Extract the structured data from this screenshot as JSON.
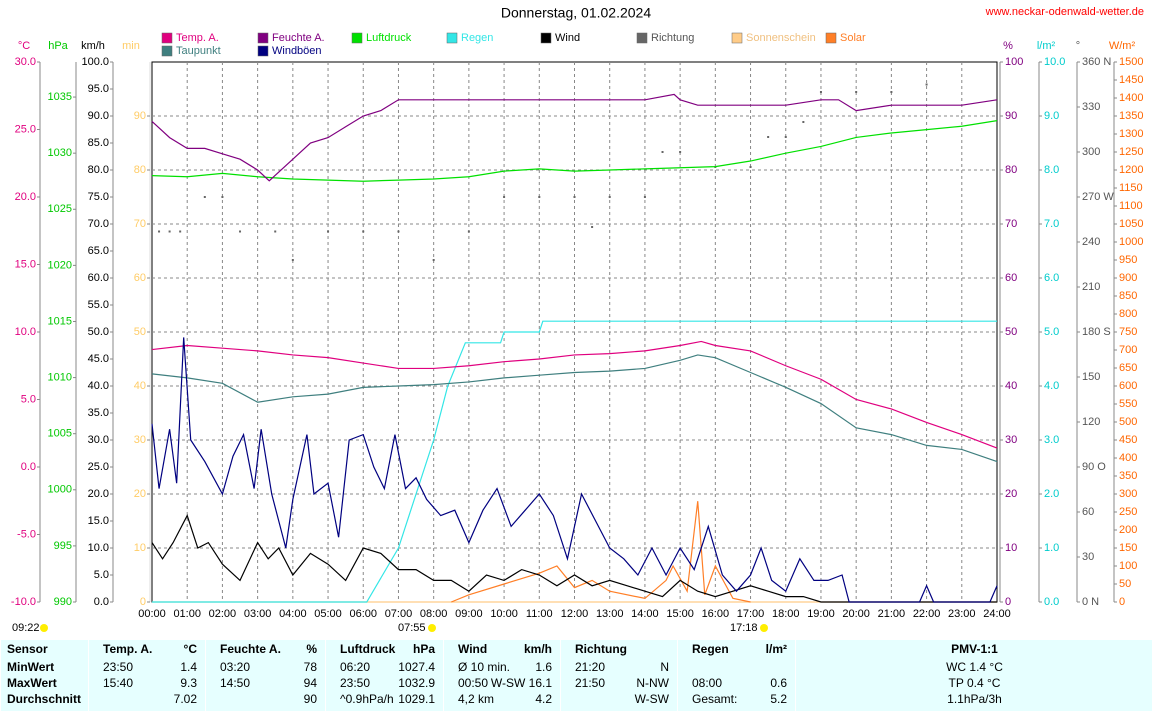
{
  "chart_data": {
    "type": "line",
    "title": "Donnerstag, 01.02.2024",
    "source": "www.neckar-odenwald-wetter.de",
    "annotations": {
      "sunshine_duration": "09:22",
      "sunrise": "07:55",
      "sunset": "17:18"
    },
    "xlim": [
      0,
      24
    ],
    "xticks": [
      {
        "value": 0,
        "label": "00:00"
      },
      {
        "value": 1,
        "label": "01:00"
      },
      {
        "value": 2,
        "label": "02:00"
      },
      {
        "value": 3,
        "label": "03:00"
      },
      {
        "value": 4,
        "label": "04:00"
      },
      {
        "value": 5,
        "label": "05:00"
      },
      {
        "value": 6,
        "label": "06:00"
      },
      {
        "value": 7,
        "label": "07:00"
      },
      {
        "value": 8,
        "label": "08:00"
      },
      {
        "value": 9,
        "label": "09:00"
      },
      {
        "value": 10,
        "label": "10:00"
      },
      {
        "value": 11,
        "label": "11:00"
      },
      {
        "value": 12,
        "label": "12:00"
      },
      {
        "value": 13,
        "label": "13:00"
      },
      {
        "value": 14,
        "label": "14:00"
      },
      {
        "value": 15,
        "label": "15:00"
      },
      {
        "value": 16,
        "label": "16:00"
      },
      {
        "value": 17,
        "label": "17:00"
      },
      {
        "value": 18,
        "label": "18:00"
      },
      {
        "value": 19,
        "label": "19:00"
      },
      {
        "value": 20,
        "label": "20:00"
      },
      {
        "value": 21,
        "label": "21:00"
      },
      {
        "value": 22,
        "label": "22:00"
      },
      {
        "value": 23,
        "label": "23:00"
      },
      {
        "value": 24,
        "label": "24:00"
      }
    ],
    "axes": [
      {
        "unit": "°C",
        "color": "#e0007f",
        "ylim": [
          -10,
          30
        ],
        "yticks": [
          {
            "value": -10,
            "label": "-10.0"
          },
          {
            "value": -5,
            "label": "-5.0"
          },
          {
            "value": 0,
            "label": "0.0"
          },
          {
            "value": 5,
            "label": "5.0"
          },
          {
            "value": 10,
            "label": "10.0"
          },
          {
            "value": 15,
            "label": "15.0"
          },
          {
            "value": 20,
            "label": "20.0"
          },
          {
            "value": 25,
            "label": "25.0"
          },
          {
            "value": 30,
            "label": "30.0"
          }
        ]
      },
      {
        "unit": "hPa",
        "color": "#00c800",
        "ylim": [
          990,
          1038.125
        ],
        "yticks": [
          990,
          995,
          1000,
          1005,
          1010,
          1015,
          1020,
          1025,
          1030,
          1035
        ]
      },
      {
        "unit": "km/h",
        "color": "#000000",
        "ylim": [
          0,
          100
        ],
        "yticks": [
          {
            "value": 0,
            "label": "0.0"
          },
          {
            "value": 5,
            "label": "5.0"
          },
          {
            "value": 10,
            "label": "10.0"
          },
          {
            "value": 15,
            "label": "15.0"
          },
          {
            "value": 20,
            "label": "20.0"
          },
          {
            "value": 25,
            "label": "25.0"
          },
          {
            "value": 30,
            "label": "30.0"
          },
          {
            "value": 35,
            "label": "35.0"
          },
          {
            "value": 40,
            "label": "40.0"
          },
          {
            "value": 45,
            "label": "45.0"
          },
          {
            "value": 50,
            "label": "50.0"
          },
          {
            "value": 55,
            "label": "55.0"
          },
          {
            "value": 60,
            "label": "60.0"
          },
          {
            "value": 65,
            "label": "65.0"
          },
          {
            "value": 70,
            "label": "70.0"
          },
          {
            "value": 75,
            "label": "75.0"
          },
          {
            "value": 80,
            "label": "80.0"
          },
          {
            "value": 85,
            "label": "85.0"
          },
          {
            "value": 90,
            "label": "90.0"
          },
          {
            "value": 95,
            "label": "95.0"
          },
          {
            "value": 100,
            "label": "100.0"
          }
        ]
      },
      {
        "unit": "min",
        "color": "#ffcc66",
        "ylim": [
          0,
          100
        ],
        "yticks": [
          0,
          10,
          20,
          30,
          40,
          50,
          60,
          70,
          80,
          90
        ]
      },
      {
        "unit": "%",
        "color": "#800080",
        "ylim": [
          0,
          100
        ],
        "yticks": [
          0,
          10,
          20,
          30,
          40,
          50,
          60,
          70,
          80,
          90,
          100
        ],
        "grid": true
      },
      {
        "unit": "l/m²",
        "color": "#00cccc",
        "ylim": [
          0,
          10
        ],
        "yticks": [
          {
            "value": 0,
            "label": "0.0"
          },
          {
            "value": 1,
            "label": "1.0"
          },
          {
            "value": 2,
            "label": "2.0"
          },
          {
            "value": 3,
            "label": "3.0"
          },
          {
            "value": 4,
            "label": "4.0"
          },
          {
            "value": 5,
            "label": "5.0"
          },
          {
            "value": 6,
            "label": "6.0"
          },
          {
            "value": 7,
            "label": "7.0"
          },
          {
            "value": 8,
            "label": "8.0"
          },
          {
            "value": 9,
            "label": "9.0"
          },
          {
            "value": 10,
            "label": "10.0"
          }
        ]
      },
      {
        "unit": "°",
        "color": "#555555",
        "ylim": [
          0,
          360
        ],
        "yticks": [
          {
            "value": 0,
            "label": "0 N"
          },
          30,
          60,
          {
            "value": 90,
            "label": "90 O"
          },
          120,
          150,
          {
            "value": 180,
            "label": "180 S"
          },
          210,
          240,
          {
            "value": 270,
            "label": "270 W"
          },
          300,
          330,
          {
            "value": 360,
            "label": "360 N"
          }
        ]
      },
      {
        "unit": "W/m²",
        "color": "#ff6600",
        "ylim": [
          0,
          1500
        ],
        "yticks": [
          0,
          50,
          100,
          150,
          200,
          250,
          300,
          350,
          400,
          450,
          500,
          550,
          600,
          650,
          700,
          750,
          800,
          850,
          900,
          950,
          1000,
          1050,
          1100,
          1150,
          1200,
          1250,
          1300,
          1350,
          1400,
          1450,
          1500
        ]
      }
    ],
    "series": [
      {
        "name": "Temp. A.",
        "color": "#e0007f",
        "axis": 0,
        "kind": "line",
        "x": [
          0,
          1,
          2,
          3,
          4,
          5,
          6,
          7,
          8,
          9,
          10,
          11,
          12,
          13,
          14,
          15,
          15.6,
          16,
          17,
          18,
          19,
          20,
          21,
          22,
          23,
          24
        ],
        "values": [
          8.7,
          9.0,
          8.8,
          8.6,
          8.3,
          8.1,
          7.7,
          7.3,
          7.3,
          7.5,
          7.8,
          8.0,
          8.3,
          8.4,
          8.6,
          9.0,
          9.3,
          9.0,
          8.6,
          7.5,
          6.5,
          5.0,
          4.3,
          3.3,
          2.4,
          1.4
        ]
      },
      {
        "name": "Taupunkt",
        "color": "#3f7f7f",
        "axis": 0,
        "kind": "line",
        "x": [
          0,
          1,
          2,
          3,
          4,
          5,
          6,
          7,
          8,
          9,
          10,
          11,
          12,
          13,
          14,
          15,
          15.5,
          16,
          17,
          18,
          19,
          20,
          21,
          22,
          23,
          24
        ],
        "values": [
          6.9,
          6.6,
          6.2,
          4.8,
          5.2,
          5.4,
          5.9,
          6.0,
          6.1,
          6.3,
          6.6,
          6.8,
          7.0,
          7.1,
          7.3,
          7.9,
          8.3,
          8.1,
          7.0,
          5.9,
          4.7,
          2.9,
          2.4,
          1.6,
          1.3,
          0.4
        ]
      },
      {
        "name": "Feuchte A.",
        "color": "#800080",
        "axis": 4,
        "kind": "line",
        "x": [
          0,
          0.5,
          1,
          1.5,
          2,
          2.5,
          3,
          3.33,
          4,
          4.5,
          5,
          5.5,
          6,
          6.5,
          7,
          8,
          9,
          10,
          11,
          12,
          13,
          14,
          14.83,
          15,
          15.5,
          16,
          17,
          18,
          19,
          19.5,
          20,
          21,
          22,
          23,
          24
        ],
        "values": [
          89,
          86,
          84,
          84,
          83,
          82,
          80,
          78,
          82,
          85,
          86,
          88,
          90,
          91,
          93,
          93,
          93,
          93,
          93,
          93,
          93,
          93,
          94,
          93,
          92,
          92,
          92,
          92,
          93,
          93,
          91,
          92,
          92,
          92,
          93
        ]
      },
      {
        "name": "Windböen",
        "color": "#000080",
        "axis": 2,
        "kind": "line",
        "x": [
          0,
          0.2,
          0.5,
          0.7,
          0.9,
          1.1,
          1.5,
          2,
          2.3,
          2.6,
          2.9,
          3.1,
          3.4,
          3.8,
          4,
          4.4,
          4.6,
          5,
          5.3,
          5.6,
          6,
          6.3,
          6.6,
          6.9,
          7.2,
          7.5,
          7.8,
          8.2,
          8.6,
          9,
          9.4,
          9.8,
          10.2,
          10.6,
          11,
          11.4,
          11.8,
          12.2,
          12.6,
          13,
          13.4,
          13.8,
          14.2,
          14.6,
          15,
          15.4,
          15.8,
          16.2,
          16.6,
          17,
          17.3,
          17.6,
          18,
          18.4,
          18.8,
          19.2,
          19.6,
          19.8,
          21.8,
          22,
          22.2,
          23.8,
          24
        ],
        "values": [
          33,
          21,
          32,
          22,
          49,
          30,
          26,
          20,
          27,
          31,
          21,
          32,
          20,
          10,
          19,
          31,
          20,
          22,
          12,
          30,
          31,
          25,
          21,
          31,
          21,
          23,
          19,
          16,
          17,
          11,
          17,
          21,
          14,
          17,
          20,
          16,
          8,
          20,
          15,
          10,
          8,
          5,
          10,
          5,
          10,
          6,
          14,
          5,
          2,
          5,
          10,
          4,
          2,
          8,
          4,
          4,
          5,
          0,
          0,
          3,
          0,
          0,
          3
        ]
      },
      {
        "name": "Luftdruck",
        "color": "#00e000",
        "axis": 1,
        "kind": "line",
        "x": [
          0,
          1,
          2,
          3,
          4,
          5,
          6,
          7,
          8,
          9,
          10,
          11,
          12,
          13,
          14,
          15,
          16,
          17,
          18,
          19,
          20,
          21,
          22,
          23,
          24
        ],
        "values": [
          1028.0,
          1027.9,
          1028.2,
          1027.9,
          1027.7,
          1027.6,
          1027.5,
          1027.6,
          1027.7,
          1027.9,
          1028.4,
          1028.6,
          1028.4,
          1028.5,
          1028.6,
          1028.7,
          1028.8,
          1029.3,
          1030.0,
          1030.6,
          1031.4,
          1031.8,
          1032.1,
          1032.4,
          1032.9
        ]
      },
      {
        "name": "Regen",
        "color": "#33e6e6",
        "axis": 5,
        "kind": "line",
        "x": [
          0,
          6.1,
          7,
          7.5,
          8,
          8.4,
          8.9,
          9.9,
          10,
          11,
          11.1,
          24
        ],
        "values": [
          0,
          0,
          1.0,
          2.0,
          3.0,
          4.0,
          4.8,
          4.8,
          5.0,
          5.0,
          5.2,
          5.2
        ]
      },
      {
        "name": "Wind",
        "color": "#000000",
        "axis": 2,
        "kind": "line",
        "x": [
          0,
          0.3,
          0.6,
          1,
          1.3,
          1.6,
          2,
          2.5,
          3,
          3.3,
          3.6,
          4,
          4.5,
          5,
          5.5,
          6,
          6.5,
          7,
          7.5,
          8,
          8.5,
          9,
          9.5,
          10,
          10.5,
          11,
          11.5,
          12,
          12.5,
          13,
          13.5,
          14,
          14.5,
          15,
          15.5,
          16,
          16.5,
          17,
          17.5,
          18,
          18.5,
          19,
          19.5,
          20,
          24
        ],
        "values": [
          11,
          8,
          11,
          16,
          10,
          11,
          7,
          4,
          11,
          8,
          10,
          5,
          9,
          7,
          4,
          10,
          9,
          6,
          6,
          4,
          4,
          2,
          5,
          4,
          6,
          5,
          3,
          5,
          3,
          4,
          3,
          2,
          1,
          4,
          2,
          1,
          2,
          3,
          2,
          1,
          1,
          0,
          0,
          0,
          0
        ]
      },
      {
        "name": "Richtung",
        "color": "#666666",
        "axis": 6,
        "kind": "dots",
        "x": [
          0.2,
          0.5,
          0.8,
          1.5,
          2,
          2.5,
          3.5,
          4,
          5,
          6,
          7,
          8,
          9,
          10,
          11,
          12,
          12.5,
          13,
          14,
          14.5,
          15,
          16,
          17,
          17.5,
          18,
          18.5,
          19,
          20,
          21,
          22
        ],
        "values": [
          247,
          247,
          247,
          270,
          270,
          247,
          247,
          228,
          247,
          247,
          247,
          228,
          247,
          270,
          270,
          270,
          250,
          270,
          270,
          300,
          300,
          290,
          290,
          310,
          310,
          320,
          340,
          340,
          340,
          345
        ]
      },
      {
        "name": "Sonnenschein",
        "color": "#ffcc88",
        "axis": 3,
        "kind": "line",
        "x": [
          0,
          24
        ],
        "values": [
          0,
          0
        ]
      },
      {
        "name": "Solar",
        "color": "#ff7f27",
        "axis": 7,
        "kind": "line",
        "x": [
          8.5,
          9,
          10,
          11,
          11.5,
          12,
          12.5,
          13,
          14,
          14.6,
          14.8,
          15.2,
          15.5,
          15.7,
          16,
          16.5,
          17
        ],
        "values": [
          0,
          20,
          50,
          80,
          100,
          40,
          60,
          30,
          10,
          60,
          100,
          30,
          280,
          20,
          100,
          10,
          0
        ]
      }
    ]
  },
  "table": {
    "header": [
      {
        "left": "Sensor"
      },
      {
        "left": "Temp. A.",
        "right": "°C"
      },
      {
        "left": "Feuchte A.",
        "right": "%"
      },
      {
        "left": "Luftdruck",
        "right": "hPa"
      },
      {
        "left": "Wind",
        "right": "km/h"
      },
      {
        "left": "Richtung"
      },
      {
        "left": "Regen",
        "right": "l/m²"
      },
      {
        "center": "PMV-1:1"
      }
    ],
    "rows": [
      [
        {
          "left": "MinWert"
        },
        {
          "left": "23:50",
          "right": "1.4"
        },
        {
          "left": "03:20",
          "right": "78"
        },
        {
          "left": "06:20",
          "right": "1027.4"
        },
        {
          "left": "Ø 10 min.",
          "right": "1.6"
        },
        {
          "left": "21:20",
          "right": "N"
        },
        {},
        {
          "center": "WC 1.4 °C"
        }
      ],
      [
        {
          "left": "MaxWert"
        },
        {
          "left": "15:40",
          "right": "9.3"
        },
        {
          "left": "14:50",
          "right": "94"
        },
        {
          "left": "23:50",
          "right": "1032.9"
        },
        {
          "left": "00:50",
          "right": "W-SW 16.1"
        },
        {
          "left": "21:50",
          "right": "N-NW"
        },
        {
          "left": "08:00",
          "right": "0.6"
        },
        {
          "center": "TP 0.4 °C"
        }
      ],
      [
        {
          "left": "Durchschnitt"
        },
        {
          "right": "7.02"
        },
        {
          "right": "90"
        },
        {
          "left": "^0.9hPa/h",
          "right": "1029.1"
        },
        {
          "left": "4,2 km",
          "right": "4.2"
        },
        {
          "right": "W-SW"
        },
        {
          "left": "Gesamt:",
          "right": "5.2"
        },
        {
          "center": "1.1hPa/3h"
        }
      ]
    ]
  }
}
